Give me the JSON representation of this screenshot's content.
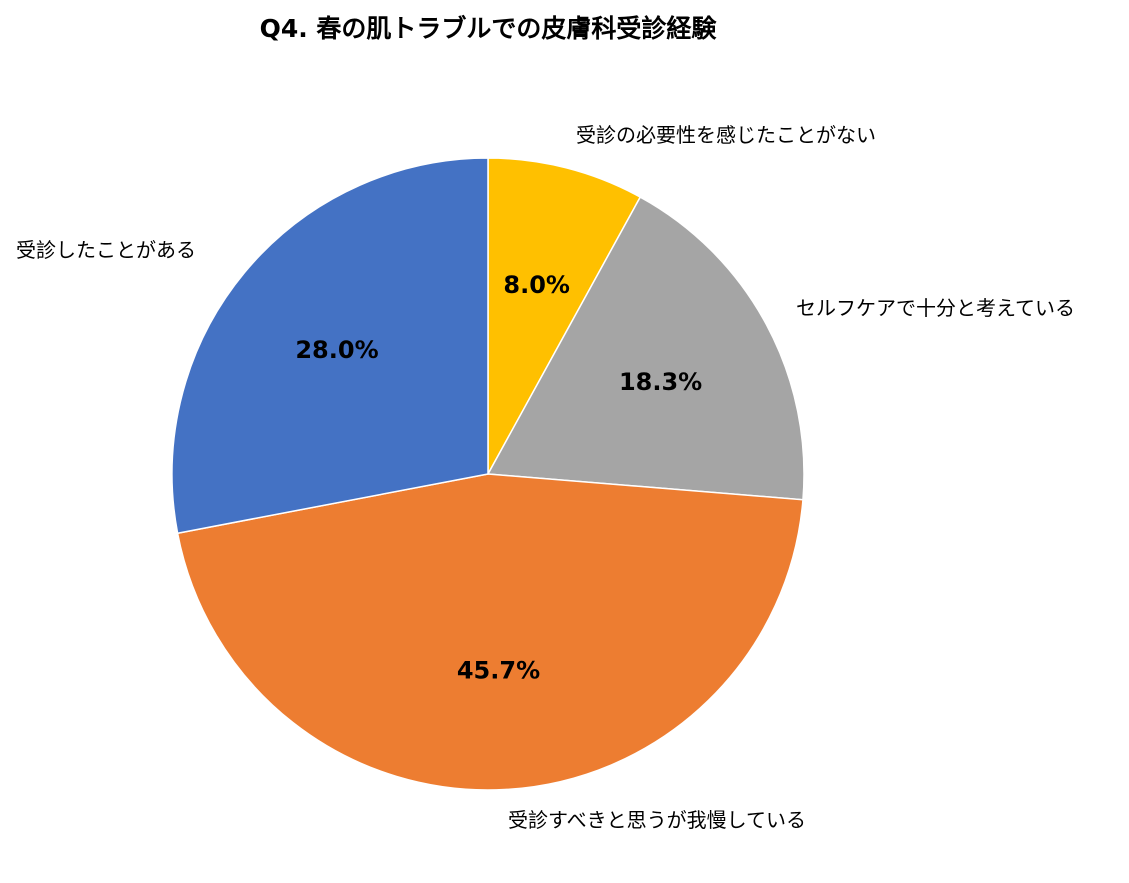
{
  "chart_data": {
    "type": "pie",
    "title": "Q4. 春の肌トラブルでの皮膚科受診経験",
    "start_angle_deg": 0,
    "direction": "clockwise",
    "slices": [
      {
        "label": "受診の必要性を感じたことがない",
        "value": 8.0,
        "value_label": "8.0%",
        "color": "#FFC000"
      },
      {
        "label": "セルフケアで十分と考えている",
        "value": 18.3,
        "value_label": "18.3%",
        "color": "#A5A5A5"
      },
      {
        "label": "受診すべきと思うが我慢している",
        "value": 45.7,
        "value_label": "45.7%",
        "color": "#ED7D31"
      },
      {
        "label": "受診したことがある",
        "value": 28.0,
        "value_label": "28.0%",
        "color": "#4472C4"
      }
    ],
    "legend": "none",
    "data_labels": "inside"
  }
}
